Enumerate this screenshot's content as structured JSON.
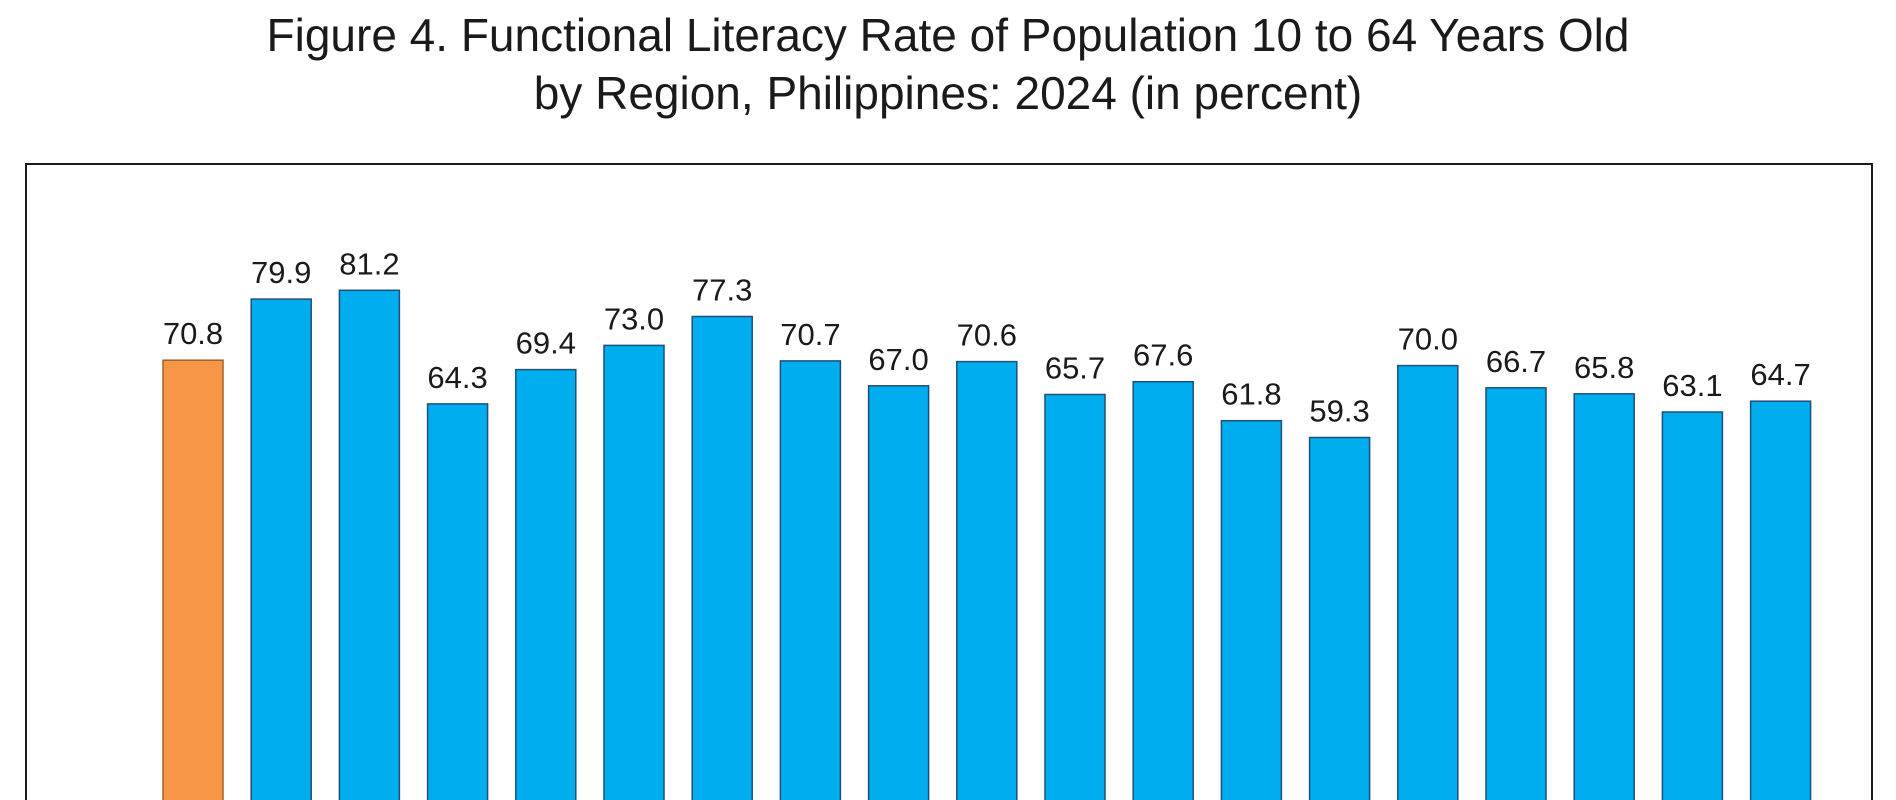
{
  "chart_data": {
    "type": "bar",
    "title": "Figure 4.  Functional Literacy Rate of Population 10 to 64 Years Old",
    "subtitle": "by Region, Philippines: 2024 (in percent)",
    "values": [
      70.8,
      79.9,
      81.2,
      64.3,
      69.4,
      73.0,
      77.3,
      70.7,
      67.0,
      70.6,
      65.7,
      67.6,
      61.8,
      59.3,
      70.0,
      66.7,
      65.8,
      63.1,
      64.7
    ],
    "value_labels": [
      "70.8",
      "79.9",
      "81.2",
      "64.3",
      "69.4",
      "73.0",
      "77.3",
      "70.7",
      "67.0",
      "70.6",
      "65.7",
      "67.6",
      "61.8",
      "59.3",
      "70.0",
      "66.7",
      "65.8",
      "63.1",
      "64.7"
    ],
    "highlight_index": 0,
    "ylim": [
      0,
      100
    ],
    "grid": false,
    "colors": {
      "highlight": "#F79646",
      "highlight_border": "#A0622A",
      "default": "#00AEEF",
      "default_border": "#1F4E79",
      "frame": "#1a1a1a"
    }
  }
}
